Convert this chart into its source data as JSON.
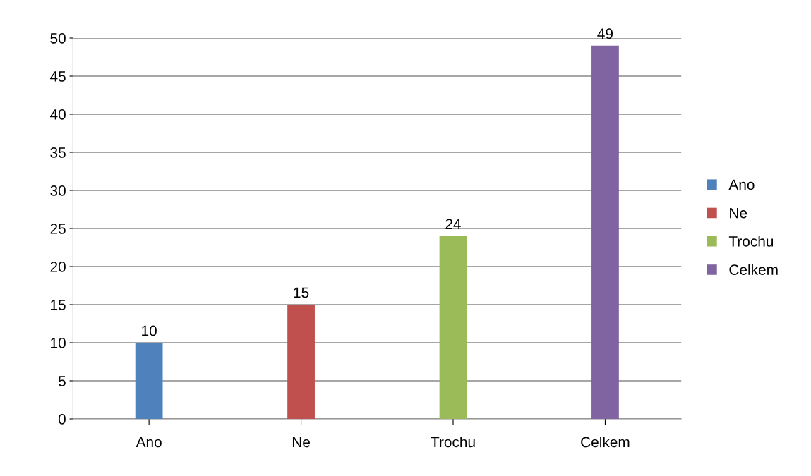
{
  "chart_data": {
    "type": "bar",
    "categories": [
      "Ano",
      "Ne",
      "Trochu",
      "Celkem"
    ],
    "series": [
      {
        "name": "Ano",
        "color": "#4f81bd",
        "values": [
          10,
          null,
          null,
          null
        ]
      },
      {
        "name": "Ne",
        "color": "#c0504d",
        "values": [
          null,
          15,
          null,
          null
        ]
      },
      {
        "name": "Trochu",
        "color": "#9bbb59",
        "values": [
          null,
          null,
          24,
          null
        ]
      },
      {
        "name": "Celkem",
        "color": "#8064a2",
        "values": [
          null,
          null,
          null,
          49
        ]
      }
    ],
    "ylim": [
      0,
      50
    ],
    "yticks": [
      0,
      5,
      10,
      15,
      20,
      25,
      30,
      35,
      40,
      45,
      50
    ],
    "grid": "y",
    "legend": "right",
    "data_labels": true
  }
}
